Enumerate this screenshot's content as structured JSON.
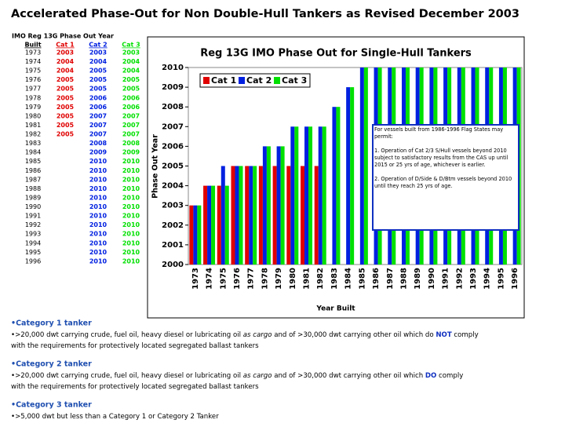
{
  "title": "Accelerated Phase-Out for Non Double-Hull Tankers as Revised December 2003",
  "table": {
    "caption": "IMO Reg 13G Phase Out Year",
    "built_header": "Built"
  },
  "chart_data": {
    "type": "bar",
    "title": "Reg 13G IMO Phase Out for Single-Hull Tankers",
    "x_label": "Year Built",
    "y_label": "Phase Out Year",
    "categories": [
      "1973",
      "1974",
      "1975",
      "1976",
      "1977",
      "1978",
      "1979",
      "1980",
      "1981",
      "1982",
      "1983",
      "1984",
      "1985",
      "1986",
      "1987",
      "1988",
      "1989",
      "1990",
      "1991",
      "1992",
      "1993",
      "1994",
      "1995",
      "1996"
    ],
    "series": [
      {
        "name": "Cat 1",
        "color": "#e00000",
        "values": [
          2003,
          2004,
          2004,
          2005,
          2005,
          2005,
          2005,
          2005,
          2005,
          2005,
          null,
          null,
          null,
          null,
          null,
          null,
          null,
          null,
          null,
          null,
          null,
          null,
          null,
          null
        ]
      },
      {
        "name": "Cat 2",
        "color": "#0020e0",
        "values": [
          2003,
          2004,
          2005,
          2005,
          2005,
          2006,
          2006,
          2007,
          2007,
          2007,
          2008,
          2009,
          2010,
          2010,
          2010,
          2010,
          2010,
          2010,
          2010,
          2010,
          2010,
          2010,
          2010,
          2010
        ]
      },
      {
        "name": "Cat 3",
        "color": "#00e000",
        "values": [
          2003,
          2004,
          2004,
          2005,
          2005,
          2006,
          2006,
          2007,
          2007,
          2007,
          2008,
          2009,
          2010,
          2010,
          2010,
          2010,
          2010,
          2010,
          2010,
          2010,
          2010,
          2010,
          2010,
          2010
        ]
      }
    ],
    "ylim": [
      2000,
      2010
    ],
    "yticks": [
      2000,
      2001,
      2002,
      2003,
      2004,
      2005,
      2006,
      2007,
      2008,
      2009,
      2010
    ],
    "legend": "top-left",
    "annotation": [
      "For vessels built from 1986-1996 Flag States may permit:",
      "1. Operation of Cat 2/3 S/Hull vessels beyond 2010 subject to satisfactory results from the CAS up until 2015 or 25 yrs of age, whichever is earlier.",
      "2. Operation of D/Side & D/Btm vessels beyond 2010 until they reach 25 yrs of age."
    ]
  },
  "notes": [
    {
      "heading": "•Category 1 tanker",
      "lines": [
        [
          {
            "text": "•>20,000 dwt carrying crude, fuel oil, heavy diesel or lubricating oil "
          },
          {
            "text": "as cargo",
            "italic": true
          },
          {
            "text": " and of >30,000 dwt carrying other oil which do "
          },
          {
            "text": "NOT",
            "bold": true
          },
          {
            "text": " comply"
          }
        ],
        [
          {
            "text": "with the requirements for protectively located segregated ballast tankers"
          }
        ]
      ]
    },
    {
      "heading": "•Category 2 tanker",
      "lines": [
        [
          {
            "text": "•>20,000 dwt carrying crude, fuel oil, heavy diesel or lubricating oil "
          },
          {
            "text": "as cargo",
            "italic": true
          },
          {
            "text": " and of >30,000 dwt carrying other oil which "
          },
          {
            "text": "DO",
            "bold": true
          },
          {
            "text": " comply"
          }
        ],
        [
          {
            "text": "with the requirements for protectively located segregated ballast tankers"
          }
        ]
      ]
    },
    {
      "heading": "•Category 3 tanker",
      "lines": [
        [
          {
            "text": "•>5,000 dwt but less than a Category 1 or Category 2 Tanker"
          }
        ]
      ]
    }
  ]
}
